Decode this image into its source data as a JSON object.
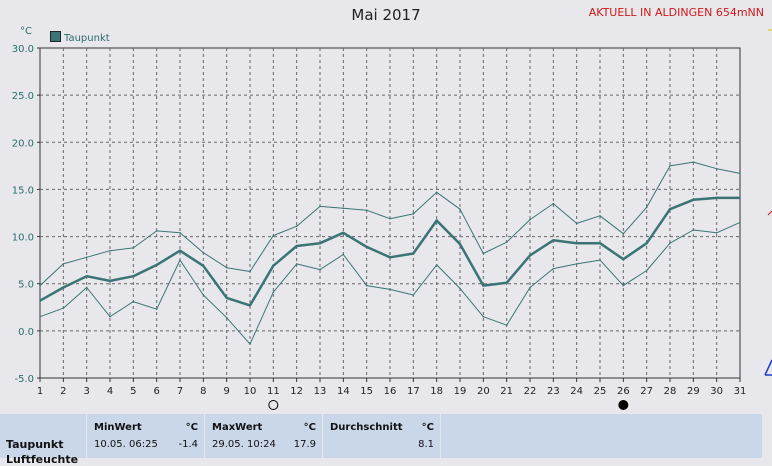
{
  "title": "Mai 2017",
  "aktuell": "AKTUELL IN ALDINGEN 654mNN",
  "unit": "°C",
  "legend_label": "Taupunkt",
  "colors": {
    "series": "#3a7474",
    "minmax": "#3a7474",
    "grid": "#555555",
    "background": "#e8e8ec",
    "panel": "#c9d7e8",
    "title_red": "#d01818"
  },
  "chart_data": {
    "type": "line",
    "title": "Mai 2017",
    "ylabel": "°C",
    "ylim": [
      -5,
      30
    ],
    "yticks": [
      "30.0",
      "25.0",
      "20.0",
      "15.0",
      "10.0",
      "5.0",
      "0.0",
      "-5.0"
    ],
    "x": [
      1,
      2,
      3,
      4,
      5,
      6,
      7,
      8,
      9,
      10,
      11,
      12,
      13,
      14,
      15,
      16,
      17,
      18,
      19,
      20,
      21,
      22,
      23,
      24,
      25,
      26,
      27,
      28,
      29,
      30,
      31
    ],
    "series": [
      {
        "name": "Taupunkt",
        "role": "mean",
        "values": [
          3.2,
          4.6,
          5.8,
          5.3,
          5.8,
          7.0,
          8.5,
          6.9,
          3.5,
          2.7,
          6.9,
          9.0,
          9.3,
          10.4,
          8.9,
          7.8,
          8.2,
          11.7,
          9.2,
          4.8,
          5.1,
          8.0,
          9.6,
          9.3,
          9.3,
          7.6,
          9.3,
          12.9,
          13.9,
          14.1,
          14.1
        ]
      },
      {
        "role": "max",
        "values": [
          4.8,
          7.1,
          7.8,
          8.5,
          8.8,
          10.6,
          10.4,
          8.3,
          6.7,
          6.3,
          10.1,
          11.1,
          13.2,
          13.0,
          12.8,
          11.9,
          12.4,
          14.7,
          12.9,
          8.2,
          9.4,
          11.8,
          13.5,
          11.4,
          12.2,
          10.3,
          13.1,
          17.5,
          17.9,
          17.2,
          16.7
        ]
      },
      {
        "role": "min",
        "values": [
          1.5,
          2.4,
          4.6,
          1.5,
          3.1,
          2.3,
          7.5,
          3.8,
          1.4,
          -1.4,
          4.1,
          7.1,
          6.5,
          8.1,
          4.8,
          4.4,
          3.8,
          7.0,
          4.5,
          1.5,
          0.6,
          4.6,
          6.6,
          7.1,
          7.5,
          4.8,
          6.4,
          9.3,
          10.7,
          10.4,
          11.5
        ]
      }
    ],
    "markers": [
      {
        "x": 11,
        "symbol": "open-circle"
      },
      {
        "x": 26,
        "symbol": "filled-circle"
      }
    ],
    "grid": true,
    "legend_position": "top-left"
  },
  "stats": {
    "row_label": "Taupunkt",
    "row_label_next": "Luftfeuchte",
    "min": {
      "header": "MinWert",
      "unit": "°C",
      "when": "10.05.  06:25",
      "value": "-1.4"
    },
    "max": {
      "header": "MaxWert",
      "unit": "°C",
      "when": "29.05.  10:24",
      "value": "17.9"
    },
    "avg": {
      "header": "Durchschnitt",
      "unit": "°C",
      "value": "8.1"
    }
  }
}
